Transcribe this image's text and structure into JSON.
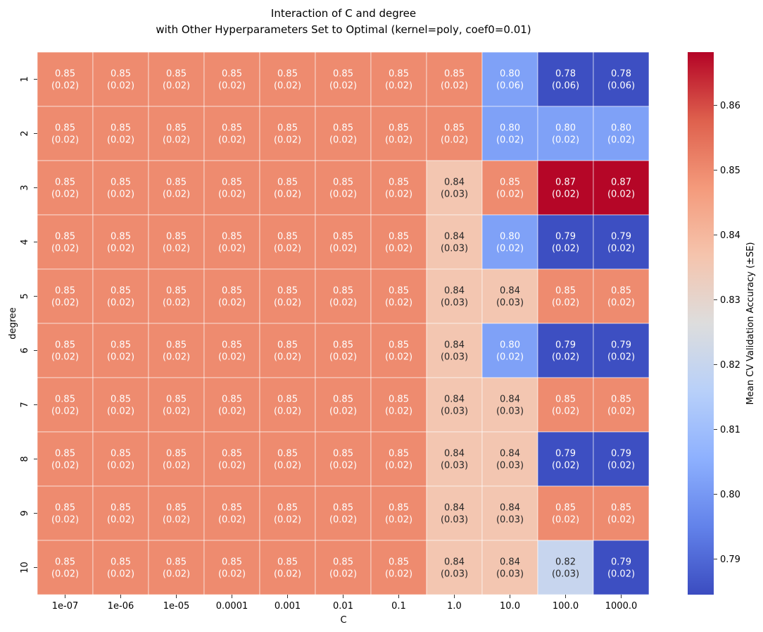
{
  "chart_data": {
    "type": "heatmap",
    "title_line1": "Interaction of C and degree",
    "title_line2": "with Other Hyperparameters Set to Optimal (kernel=poly, coef0=0.01)",
    "xlabel": "C",
    "ylabel": "degree",
    "colorbar_label": "Mean CV Validation Accuracy (±SE)",
    "colormap": "coolwarm",
    "vmin": 0.7845,
    "vmax": 0.8682,
    "colorbar_ticks": [
      0.79,
      0.8,
      0.81,
      0.82,
      0.83,
      0.84,
      0.85,
      0.86
    ],
    "colorbar_tick_labels": [
      "0.79",
      "0.80",
      "0.81",
      "0.82",
      "0.83",
      "0.84",
      "0.85",
      "0.86"
    ],
    "x_categories": [
      "1e-07",
      "1e-06",
      "1e-05",
      "0.0001",
      "0.001",
      "0.01",
      "0.1",
      "1.0",
      "10.0",
      "100.0",
      "1000.0"
    ],
    "y_categories": [
      "1",
      "2",
      "3",
      "4",
      "5",
      "6",
      "7",
      "8",
      "9",
      "10"
    ],
    "values": [
      [
        0.85,
        0.85,
        0.85,
        0.85,
        0.85,
        0.85,
        0.85,
        0.85,
        0.802,
        0.785,
        0.785
      ],
      [
        0.85,
        0.85,
        0.85,
        0.85,
        0.85,
        0.85,
        0.85,
        0.85,
        0.802,
        0.802,
        0.802
      ],
      [
        0.85,
        0.85,
        0.85,
        0.85,
        0.85,
        0.85,
        0.85,
        0.836,
        0.85,
        0.868,
        0.868
      ],
      [
        0.85,
        0.85,
        0.85,
        0.85,
        0.85,
        0.85,
        0.85,
        0.836,
        0.802,
        0.785,
        0.785
      ],
      [
        0.85,
        0.85,
        0.85,
        0.85,
        0.85,
        0.85,
        0.85,
        0.836,
        0.836,
        0.85,
        0.85
      ],
      [
        0.85,
        0.85,
        0.85,
        0.85,
        0.85,
        0.85,
        0.85,
        0.836,
        0.802,
        0.785,
        0.785
      ],
      [
        0.85,
        0.85,
        0.85,
        0.85,
        0.85,
        0.85,
        0.85,
        0.836,
        0.836,
        0.85,
        0.85
      ],
      [
        0.85,
        0.85,
        0.85,
        0.85,
        0.85,
        0.85,
        0.85,
        0.836,
        0.836,
        0.785,
        0.785
      ],
      [
        0.85,
        0.85,
        0.85,
        0.85,
        0.85,
        0.85,
        0.85,
        0.836,
        0.836,
        0.85,
        0.85
      ],
      [
        0.85,
        0.85,
        0.85,
        0.85,
        0.85,
        0.85,
        0.85,
        0.836,
        0.836,
        0.82,
        0.785
      ]
    ],
    "labels": [
      [
        "0.85",
        "0.85",
        "0.85",
        "0.85",
        "0.85",
        "0.85",
        "0.85",
        "0.85",
        "0.80",
        "0.78",
        "0.78"
      ],
      [
        "0.85",
        "0.85",
        "0.85",
        "0.85",
        "0.85",
        "0.85",
        "0.85",
        "0.85",
        "0.80",
        "0.80",
        "0.80"
      ],
      [
        "0.85",
        "0.85",
        "0.85",
        "0.85",
        "0.85",
        "0.85",
        "0.85",
        "0.84",
        "0.85",
        "0.87",
        "0.87"
      ],
      [
        "0.85",
        "0.85",
        "0.85",
        "0.85",
        "0.85",
        "0.85",
        "0.85",
        "0.84",
        "0.80",
        "0.79",
        "0.79"
      ],
      [
        "0.85",
        "0.85",
        "0.85",
        "0.85",
        "0.85",
        "0.85",
        "0.85",
        "0.84",
        "0.84",
        "0.85",
        "0.85"
      ],
      [
        "0.85",
        "0.85",
        "0.85",
        "0.85",
        "0.85",
        "0.85",
        "0.85",
        "0.84",
        "0.80",
        "0.79",
        "0.79"
      ],
      [
        "0.85",
        "0.85",
        "0.85",
        "0.85",
        "0.85",
        "0.85",
        "0.85",
        "0.84",
        "0.84",
        "0.85",
        "0.85"
      ],
      [
        "0.85",
        "0.85",
        "0.85",
        "0.85",
        "0.85",
        "0.85",
        "0.85",
        "0.84",
        "0.84",
        "0.79",
        "0.79"
      ],
      [
        "0.85",
        "0.85",
        "0.85",
        "0.85",
        "0.85",
        "0.85",
        "0.85",
        "0.84",
        "0.84",
        "0.85",
        "0.85"
      ],
      [
        "0.85",
        "0.85",
        "0.85",
        "0.85",
        "0.85",
        "0.85",
        "0.85",
        "0.84",
        "0.84",
        "0.82",
        "0.79"
      ]
    ],
    "se_labels": [
      [
        "(0.02)",
        "(0.02)",
        "(0.02)",
        "(0.02)",
        "(0.02)",
        "(0.02)",
        "(0.02)",
        "(0.02)",
        "(0.06)",
        "(0.06)",
        "(0.06)"
      ],
      [
        "(0.02)",
        "(0.02)",
        "(0.02)",
        "(0.02)",
        "(0.02)",
        "(0.02)",
        "(0.02)",
        "(0.02)",
        "(0.02)",
        "(0.02)",
        "(0.02)"
      ],
      [
        "(0.02)",
        "(0.02)",
        "(0.02)",
        "(0.02)",
        "(0.02)",
        "(0.02)",
        "(0.02)",
        "(0.03)",
        "(0.02)",
        "(0.02)",
        "(0.02)"
      ],
      [
        "(0.02)",
        "(0.02)",
        "(0.02)",
        "(0.02)",
        "(0.02)",
        "(0.02)",
        "(0.02)",
        "(0.03)",
        "(0.02)",
        "(0.02)",
        "(0.02)"
      ],
      [
        "(0.02)",
        "(0.02)",
        "(0.02)",
        "(0.02)",
        "(0.02)",
        "(0.02)",
        "(0.02)",
        "(0.03)",
        "(0.03)",
        "(0.02)",
        "(0.02)"
      ],
      [
        "(0.02)",
        "(0.02)",
        "(0.02)",
        "(0.02)",
        "(0.02)",
        "(0.02)",
        "(0.02)",
        "(0.03)",
        "(0.02)",
        "(0.02)",
        "(0.02)"
      ],
      [
        "(0.02)",
        "(0.02)",
        "(0.02)",
        "(0.02)",
        "(0.02)",
        "(0.02)",
        "(0.02)",
        "(0.03)",
        "(0.03)",
        "(0.02)",
        "(0.02)"
      ],
      [
        "(0.02)",
        "(0.02)",
        "(0.02)",
        "(0.02)",
        "(0.02)",
        "(0.02)",
        "(0.02)",
        "(0.03)",
        "(0.03)",
        "(0.02)",
        "(0.02)"
      ],
      [
        "(0.02)",
        "(0.02)",
        "(0.02)",
        "(0.02)",
        "(0.02)",
        "(0.02)",
        "(0.02)",
        "(0.03)",
        "(0.03)",
        "(0.02)",
        "(0.02)"
      ],
      [
        "(0.02)",
        "(0.02)",
        "(0.02)",
        "(0.02)",
        "(0.02)",
        "(0.02)",
        "(0.02)",
        "(0.03)",
        "(0.03)",
        "(0.03)",
        "(0.02)"
      ]
    ],
    "grid": false,
    "legend": "colorbar-right"
  }
}
